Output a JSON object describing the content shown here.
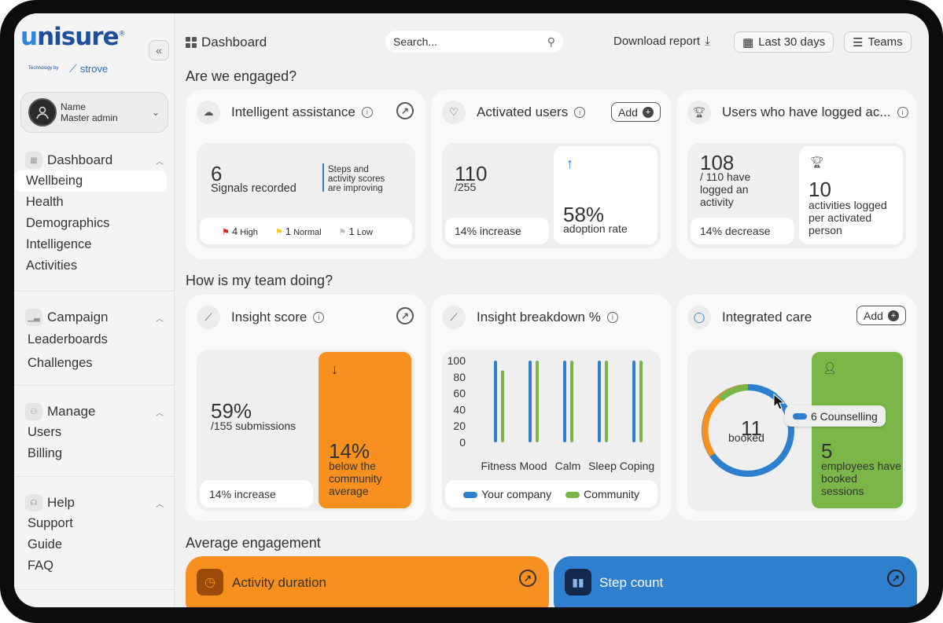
{
  "brand": {
    "logo": "unisure",
    "techby": "Technology by",
    "partner": "strove"
  },
  "profile": {
    "name_label": "Name",
    "name_value": "Master admin"
  },
  "nav": {
    "dashboard": {
      "label": "Dashboard",
      "items": [
        "Wellbeing",
        "Health",
        "Demographics",
        "Intelligence",
        "Activities"
      ]
    },
    "campaign": {
      "label": "Campaign",
      "items": [
        "Leaderboards",
        "Challenges"
      ]
    },
    "manage": {
      "label": "Manage",
      "items": [
        "Users",
        "Billing"
      ]
    },
    "help": {
      "label": "Help",
      "items": [
        "Support",
        "Guide",
        "FAQ"
      ]
    }
  },
  "topbar": {
    "title": "Dashboard",
    "search_placeholder": "Search...",
    "download": "Download report",
    "range": "Last 30 days",
    "teams": "Teams"
  },
  "sections": {
    "engaged": "Are we engaged?",
    "team": "How is my team doing?",
    "avg": "Average engagement"
  },
  "intelligent": {
    "title": "Intelligent assistance",
    "signals": "6",
    "signals_label": "Signals recorded",
    "note": "Steps and activity scores are improving",
    "high_count": "4",
    "high": "High",
    "normal_count": "1",
    "normal": "Normal",
    "low_count": "1",
    "low": "Low"
  },
  "activated": {
    "title": "Activated users",
    "add": "Add",
    "value": "110",
    "total": "/255",
    "change": "14% increase",
    "rate": "58%",
    "rate_label": "adoption rate"
  },
  "logged": {
    "title": "Users who have logged ac...",
    "value": "108",
    "desc": "/ 110 have logged an activity",
    "change": "14% decrease",
    "activities": "10",
    "activities_label": "activities logged per activated person"
  },
  "insight": {
    "title": "Insight score",
    "pct": "59%",
    "submissions": "/155 submissions",
    "change": "14% increase",
    "below": "14%",
    "below_label": "below the community average"
  },
  "breakdown": {
    "title": "Insight breakdown %"
  },
  "care": {
    "title": "Integrated care",
    "add": "Add",
    "booked": "11",
    "booked_label": "booked",
    "tooltip": "6 Counselling",
    "employees": "5",
    "employees_label": "employees have booked sessions"
  },
  "bottom": {
    "activity": "Activity duration",
    "steps": "Step count"
  },
  "colors": {
    "orange": "#f7901e",
    "blue": "#2f7fcf",
    "green": "#7ab648"
  },
  "chart_data": {
    "type": "bar",
    "categories": [
      "Fitness",
      "Mood",
      "Calm",
      "Sleep",
      "Coping"
    ],
    "ylim": [
      0,
      100
    ],
    "yticks": [
      "100",
      "80",
      "60",
      "40",
      "20",
      "0"
    ],
    "series": [
      {
        "name": "Your company",
        "values": [
          100,
          100,
          100,
          100,
          100
        ]
      },
      {
        "name": "Community",
        "values": [
          88,
          100,
          100,
          100,
          100
        ]
      }
    ],
    "legend": "bottom"
  }
}
